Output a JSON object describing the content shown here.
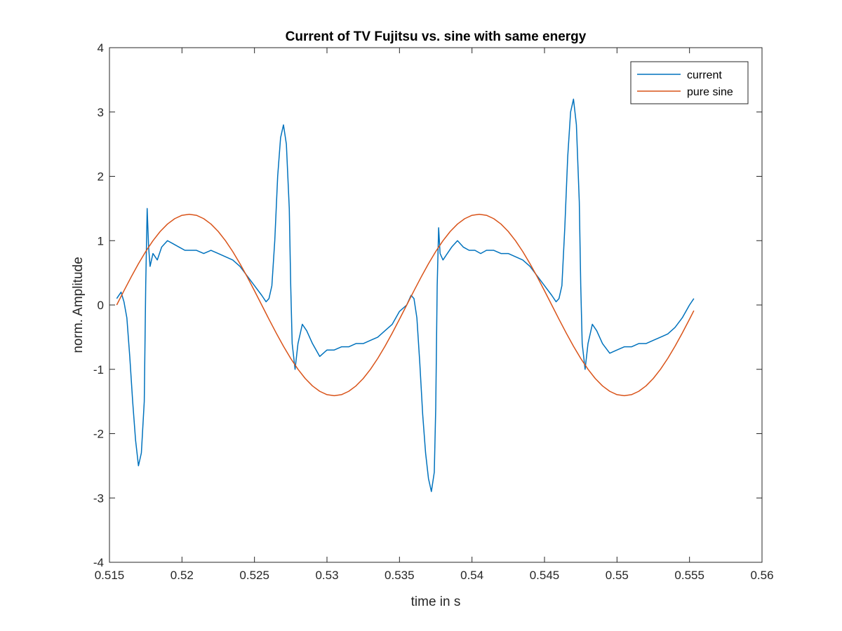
{
  "chart_data": {
    "type": "line",
    "title": "Current of TV Fujitsu vs. sine with same energy",
    "xlabel": "time in s",
    "ylabel": "norm. Amplitude",
    "xlim": [
      0.515,
      0.56
    ],
    "ylim": [
      -4,
      4
    ],
    "xticks": [
      "0.515",
      "0.52",
      "0.525",
      "0.53",
      "0.535",
      "0.54",
      "0.545",
      "0.55",
      "0.555",
      "0.56"
    ],
    "yticks": [
      "-4",
      "-3",
      "-2",
      "-1",
      "0",
      "1",
      "2",
      "3",
      "4"
    ],
    "grid": false,
    "legend_position": "top-right",
    "series": [
      {
        "name": "current",
        "color": "#0072BD",
        "x": [
          0.5155,
          0.5158,
          0.516,
          0.5162,
          0.5164,
          0.5166,
          0.5168,
          0.517,
          0.5172,
          0.5174,
          0.5175,
          0.5176,
          0.5177,
          0.5178,
          0.518,
          0.5183,
          0.5186,
          0.519,
          0.5194,
          0.5198,
          0.5202,
          0.5206,
          0.521,
          0.5215,
          0.522,
          0.5225,
          0.523,
          0.5235,
          0.524,
          0.5245,
          0.525,
          0.5255,
          0.5258,
          0.526,
          0.5262,
          0.5264,
          0.5266,
          0.5268,
          0.527,
          0.5272,
          0.5274,
          0.5275,
          0.5276,
          0.5278,
          0.528,
          0.5283,
          0.5286,
          0.529,
          0.5295,
          0.53,
          0.5305,
          0.531,
          0.5315,
          0.532,
          0.5325,
          0.533,
          0.5335,
          0.534,
          0.5345,
          0.535,
          0.5355,
          0.5358,
          0.536,
          0.5362,
          0.5364,
          0.5366,
          0.5368,
          0.537,
          0.5372,
          0.5374,
          0.5375,
          0.5376,
          0.5377,
          0.5378,
          0.538,
          0.5383,
          0.5386,
          0.539,
          0.5394,
          0.5398,
          0.5402,
          0.5406,
          0.541,
          0.5415,
          0.542,
          0.5425,
          0.543,
          0.5435,
          0.544,
          0.5445,
          0.545,
          0.5455,
          0.5458,
          0.546,
          0.5462,
          0.5464,
          0.5466,
          0.5468,
          0.547,
          0.5472,
          0.5474,
          0.5475,
          0.5476,
          0.5478,
          0.548,
          0.5483,
          0.5486,
          0.549,
          0.5495,
          0.55,
          0.5505,
          0.551,
          0.5515,
          0.552,
          0.5525,
          0.553,
          0.5535,
          0.554,
          0.5545,
          0.555,
          0.5553
        ],
        "y": [
          0.1,
          0.2,
          0.05,
          -0.2,
          -0.8,
          -1.5,
          -2.1,
          -2.5,
          -2.3,
          -1.5,
          0.3,
          1.5,
          0.9,
          0.6,
          0.8,
          0.7,
          0.9,
          1.0,
          0.95,
          0.9,
          0.85,
          0.85,
          0.85,
          0.8,
          0.85,
          0.8,
          0.75,
          0.7,
          0.6,
          0.45,
          0.3,
          0.15,
          0.05,
          0.1,
          0.3,
          1.0,
          2.0,
          2.6,
          2.8,
          2.5,
          1.5,
          0.3,
          -0.6,
          -1.0,
          -0.6,
          -0.3,
          -0.4,
          -0.6,
          -0.8,
          -0.7,
          -0.7,
          -0.65,
          -0.65,
          -0.6,
          -0.6,
          -0.55,
          -0.5,
          -0.4,
          -0.3,
          -0.1,
          0.0,
          0.15,
          0.1,
          -0.2,
          -0.9,
          -1.7,
          -2.3,
          -2.7,
          -2.9,
          -2.6,
          -1.6,
          0.3,
          1.2,
          0.8,
          0.7,
          0.8,
          0.9,
          1.0,
          0.9,
          0.85,
          0.85,
          0.8,
          0.85,
          0.85,
          0.8,
          0.8,
          0.75,
          0.7,
          0.6,
          0.45,
          0.3,
          0.15,
          0.05,
          0.1,
          0.3,
          1.2,
          2.3,
          3.0,
          3.2,
          2.8,
          1.6,
          0.3,
          -0.6,
          -1.0,
          -0.6,
          -0.3,
          -0.4,
          -0.6,
          -0.75,
          -0.7,
          -0.65,
          -0.65,
          -0.6,
          -0.6,
          -0.55,
          -0.5,
          -0.45,
          -0.35,
          -0.2,
          0.0,
          0.1
        ]
      },
      {
        "name": "pure sine",
        "color": "#D95319",
        "x": [
          0.5155,
          0.516,
          0.5165,
          0.517,
          0.5175,
          0.518,
          0.5185,
          0.519,
          0.5195,
          0.52,
          0.5205,
          0.521,
          0.5215,
          0.522,
          0.5225,
          0.523,
          0.5235,
          0.524,
          0.5245,
          0.525,
          0.5255,
          0.526,
          0.5265,
          0.527,
          0.5275,
          0.528,
          0.5285,
          0.529,
          0.5295,
          0.53,
          0.5305,
          0.531,
          0.5315,
          0.532,
          0.5325,
          0.533,
          0.5335,
          0.534,
          0.5345,
          0.535,
          0.5355,
          0.536,
          0.5365,
          0.537,
          0.5375,
          0.538,
          0.5385,
          0.539,
          0.5395,
          0.54,
          0.5405,
          0.541,
          0.5415,
          0.542,
          0.5425,
          0.543,
          0.5435,
          0.544,
          0.5445,
          0.545,
          0.5455,
          0.546,
          0.5465,
          0.547,
          0.5475,
          0.548,
          0.5485,
          0.549,
          0.5495,
          0.55,
          0.5505,
          0.551,
          0.5515,
          0.552,
          0.5525,
          0.553,
          0.5535,
          0.554,
          0.5545,
          0.555,
          0.5553
        ],
        "y": [
          0.0,
          0.221,
          0.437,
          0.642,
          0.831,
          0.999,
          1.143,
          1.258,
          1.342,
          1.394,
          1.41,
          1.394,
          1.342,
          1.258,
          1.143,
          0.999,
          0.831,
          0.642,
          0.437,
          0.221,
          0.0,
          -0.221,
          -0.437,
          -0.642,
          -0.831,
          -0.999,
          -1.143,
          -1.258,
          -1.342,
          -1.394,
          -1.41,
          -1.394,
          -1.342,
          -1.258,
          -1.143,
          -0.999,
          -0.831,
          -0.642,
          -0.437,
          -0.221,
          0.0,
          0.221,
          0.437,
          0.642,
          0.831,
          0.999,
          1.143,
          1.258,
          1.342,
          1.394,
          1.41,
          1.394,
          1.342,
          1.258,
          1.143,
          0.999,
          0.831,
          0.642,
          0.437,
          0.221,
          0.0,
          -0.221,
          -0.437,
          -0.642,
          -0.831,
          -0.999,
          -1.143,
          -1.258,
          -1.342,
          -1.394,
          -1.41,
          -1.394,
          -1.342,
          -1.258,
          -1.143,
          -0.999,
          -0.831,
          -0.642,
          -0.437,
          -0.221,
          -0.088
        ]
      }
    ]
  }
}
